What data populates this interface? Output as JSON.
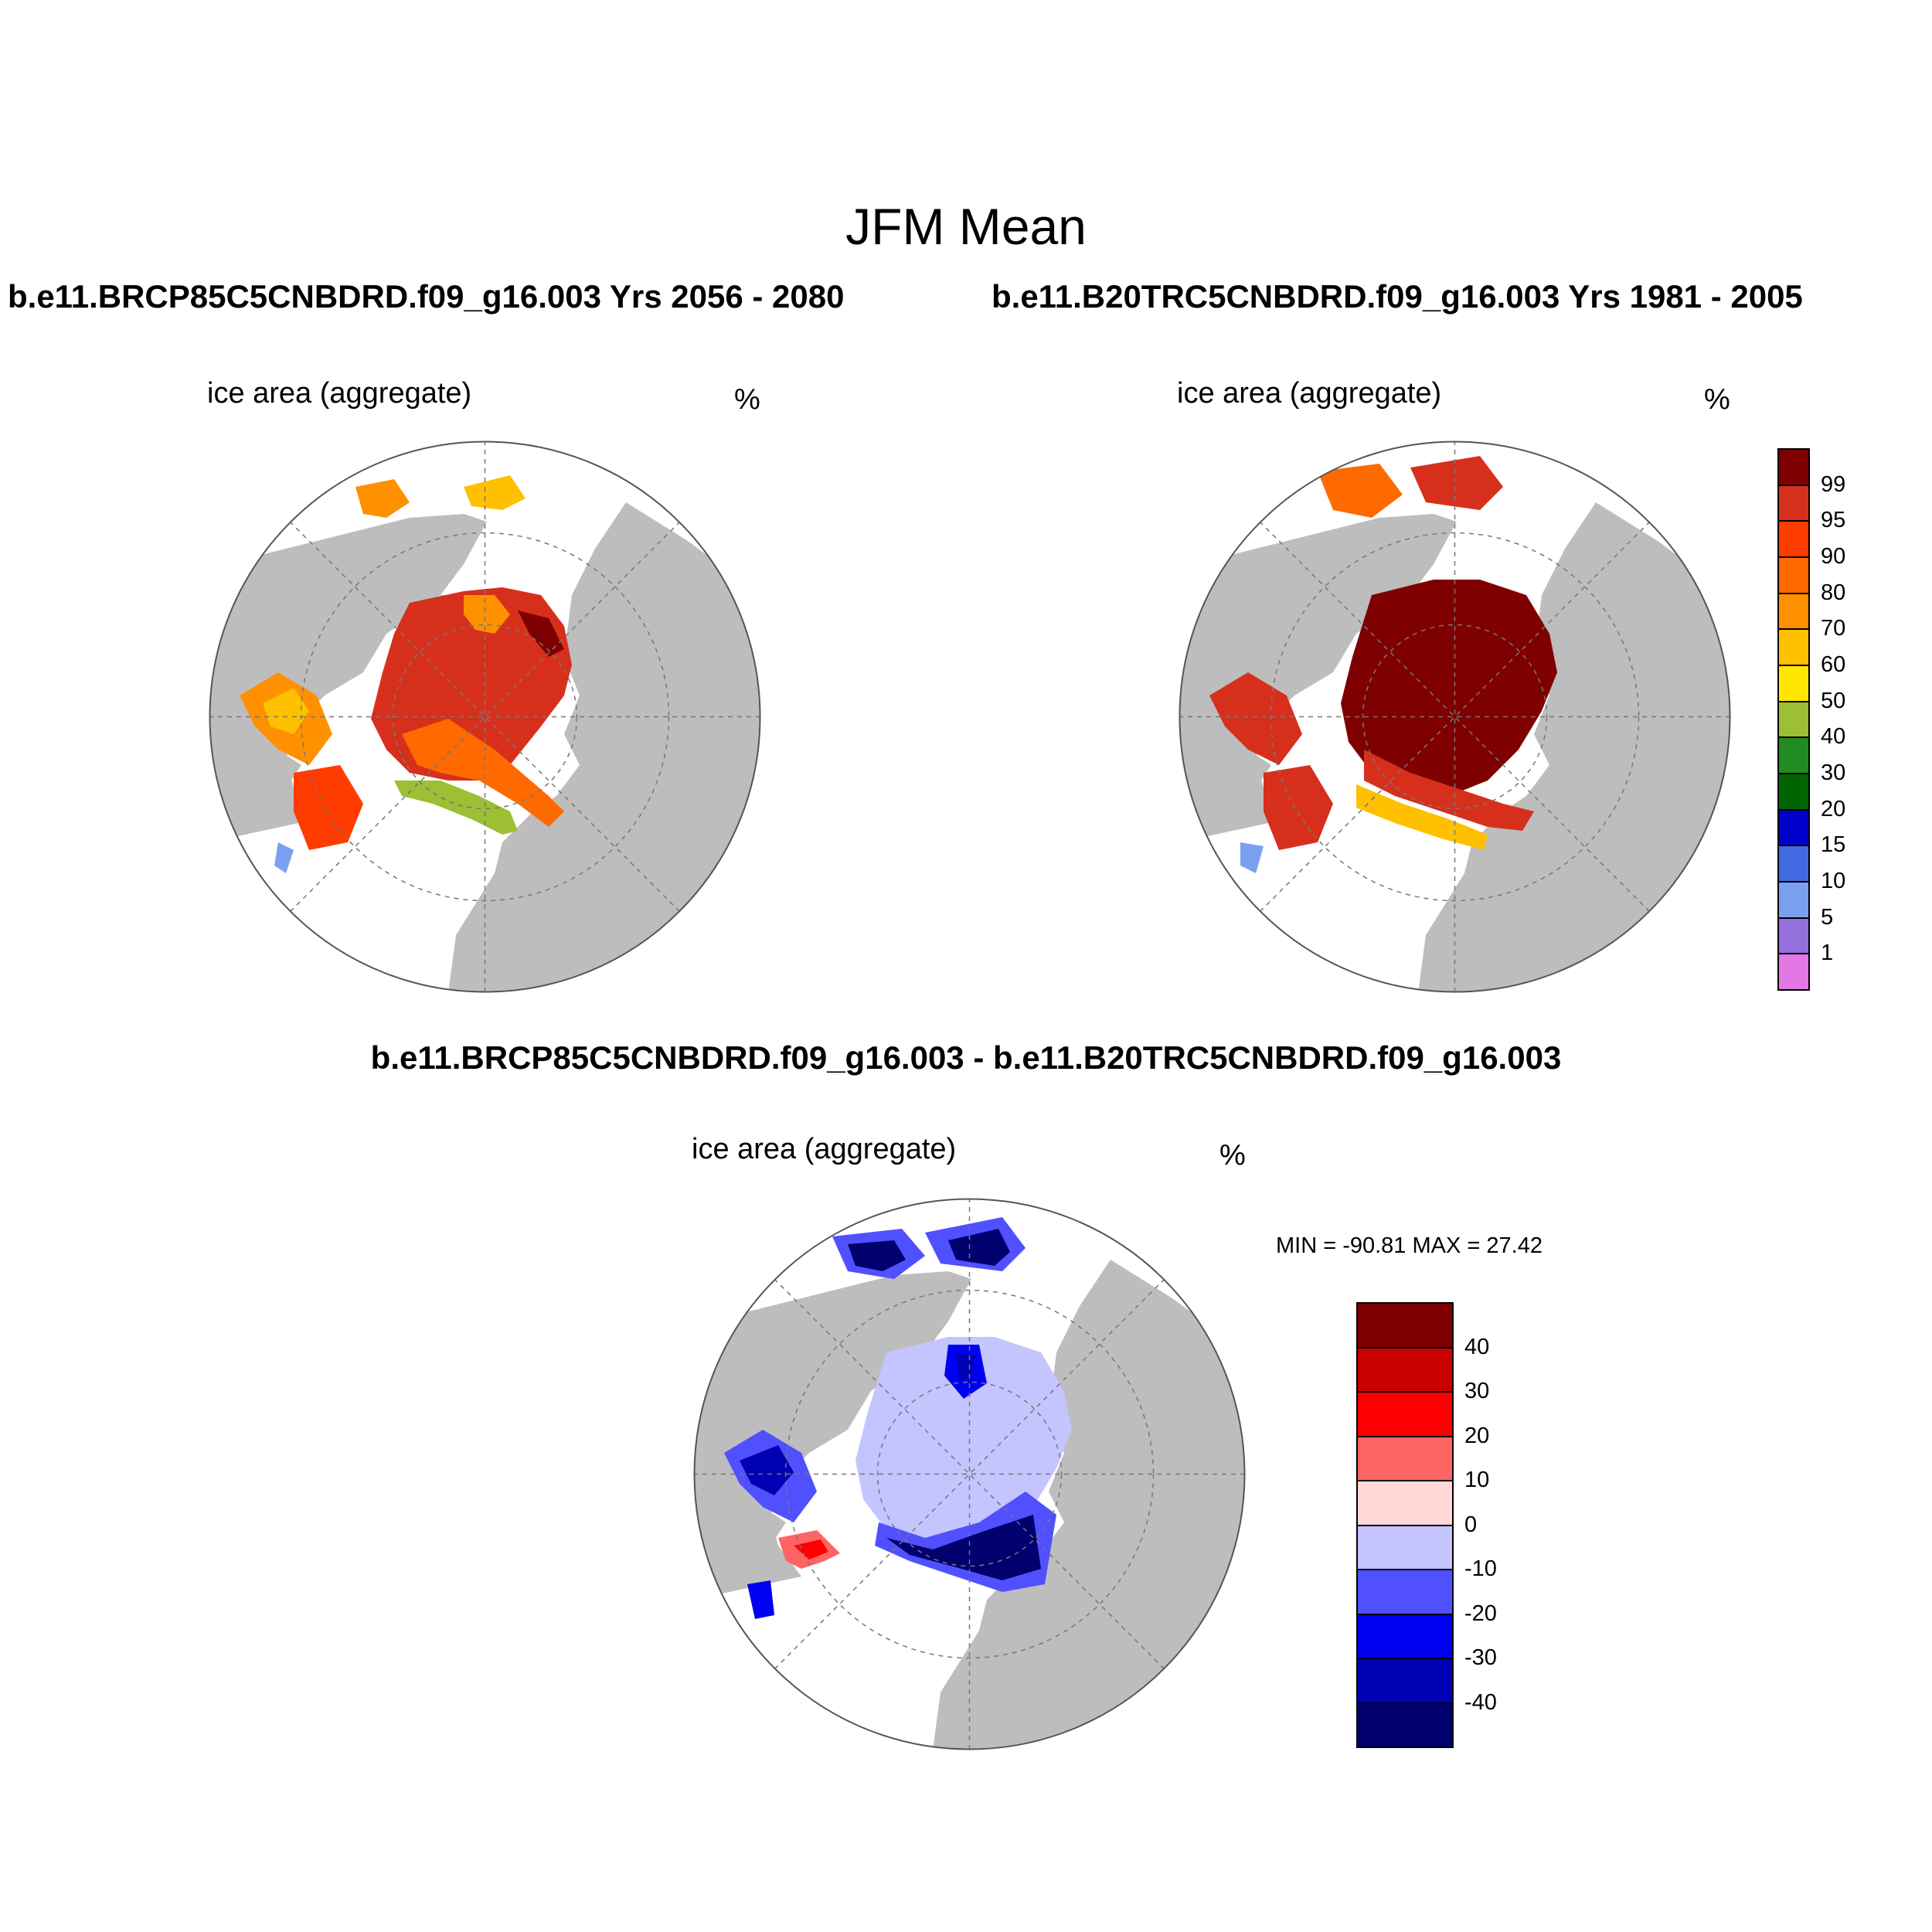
{
  "figure": {
    "title": "JFM Mean",
    "panel_left_title": "b.e11.BRCP85C5CNBDRD.f09_g16.003  Yrs 2056 - 2080",
    "panel_right_title": "b.e11.B20TRC5CNBDRD.f09_g16.003  Yrs 1981 - 2005",
    "diff_title": "b.e11.BRCP85C5CNBDRD.f09_g16.003 - b.e11.B20TRC5CNBDRD.f09_g16.003"
  },
  "panels": [
    {
      "variable": "ice area  (aggregate)",
      "units": "%"
    },
    {
      "variable": "ice area  (aggregate)",
      "units": "%"
    },
    {
      "variable": "ice area  (aggregate)",
      "units": "%",
      "minmax": "MIN = -90.81 MAX =  27.42"
    }
  ],
  "colorbars": {
    "absolute": {
      "labels": [
        "99",
        "95",
        "90",
        "80",
        "70",
        "60",
        "50",
        "40",
        "30",
        "20",
        "15",
        "10",
        "5",
        "1"
      ],
      "colors": [
        "#7f0000",
        "#d6301d",
        "#ff3c00",
        "#ff6a00",
        "#ff9000",
        "#ffc000",
        "#ffe600",
        "#9cbf34",
        "#228b22",
        "#006400",
        "#0000cd",
        "#4169e1",
        "#7aa0f0",
        "#9370db",
        "#e377e3"
      ]
    },
    "difference": {
      "labels": [
        "40",
        "30",
        "20",
        "10",
        "0",
        "-10",
        "-20",
        "-30",
        "-40"
      ],
      "colors": [
        "#800000",
        "#c80000",
        "#ff0000",
        "#ff6464",
        "#ffd7d7",
        "#c4c4ff",
        "#5050ff",
        "#0000f0",
        "#0000b4",
        "#00006e"
      ]
    }
  },
  "map_colors": {
    "land": "#bdbdbd",
    "ocean": "#ffffff",
    "grid": "#777777"
  }
}
